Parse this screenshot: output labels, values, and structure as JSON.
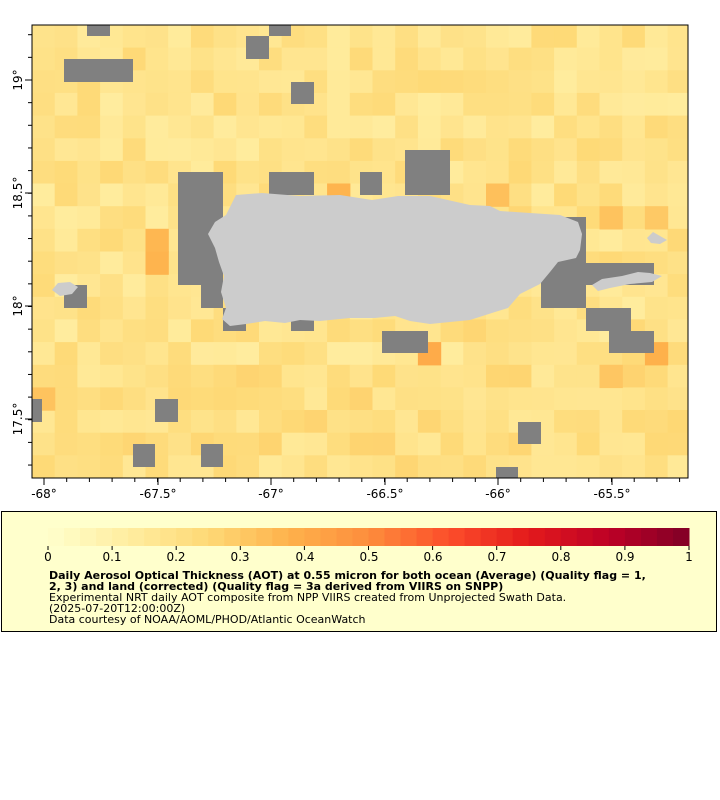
{
  "map": {
    "longitude_ticks": [
      "-68°",
      "-67.5°",
      "-67°",
      "-66.5°",
      "-66°",
      "-65.5°"
    ],
    "latitude_ticks": [
      "19°",
      "18.5°",
      "18°",
      "17.5°"
    ],
    "extent": {
      "lon_min": -68.05,
      "lon_max": -65.2,
      "lat_min": 17.25,
      "lat_max": 19.25
    },
    "colors": {
      "no_data": "#808080",
      "land": "#cccccc",
      "background": "#ffeba6"
    },
    "layers": [
      "aerosol-optical-thickness-grid",
      "land-mask",
      "no-data-cells"
    ]
  },
  "colorbar": {
    "tick_labels": [
      "0",
      "0.1",
      "0.2",
      "0.3",
      "0.4",
      "0.5",
      "0.6",
      "0.7",
      "0.8",
      "0.9",
      "1"
    ],
    "min": 0,
    "max": 1,
    "colormap": [
      "#ffffcc",
      "#ffeda0",
      "#fed976",
      "#feb24c",
      "#fd8d3c",
      "#fc4e2a",
      "#e31a1c",
      "#bd0026",
      "#800026"
    ]
  },
  "caption": {
    "title": "Daily Aerosol Optical Thickness (AOT) at 0.55 micron for both ocean (Average) (Quality flag = 1,\n2, 3) and land (corrected) (Quality flag = 3a derived from VIIRS on SNPP)",
    "description": "Experimental NRT daily AOT composite from NPP VIIRS created from Unprojected Swath Data.",
    "date": "(2025-07-20T12:00:00Z)",
    "credit": "Data courtesy of NOAA/AOML/PHOD/Atlantic OceanWatch"
  }
}
